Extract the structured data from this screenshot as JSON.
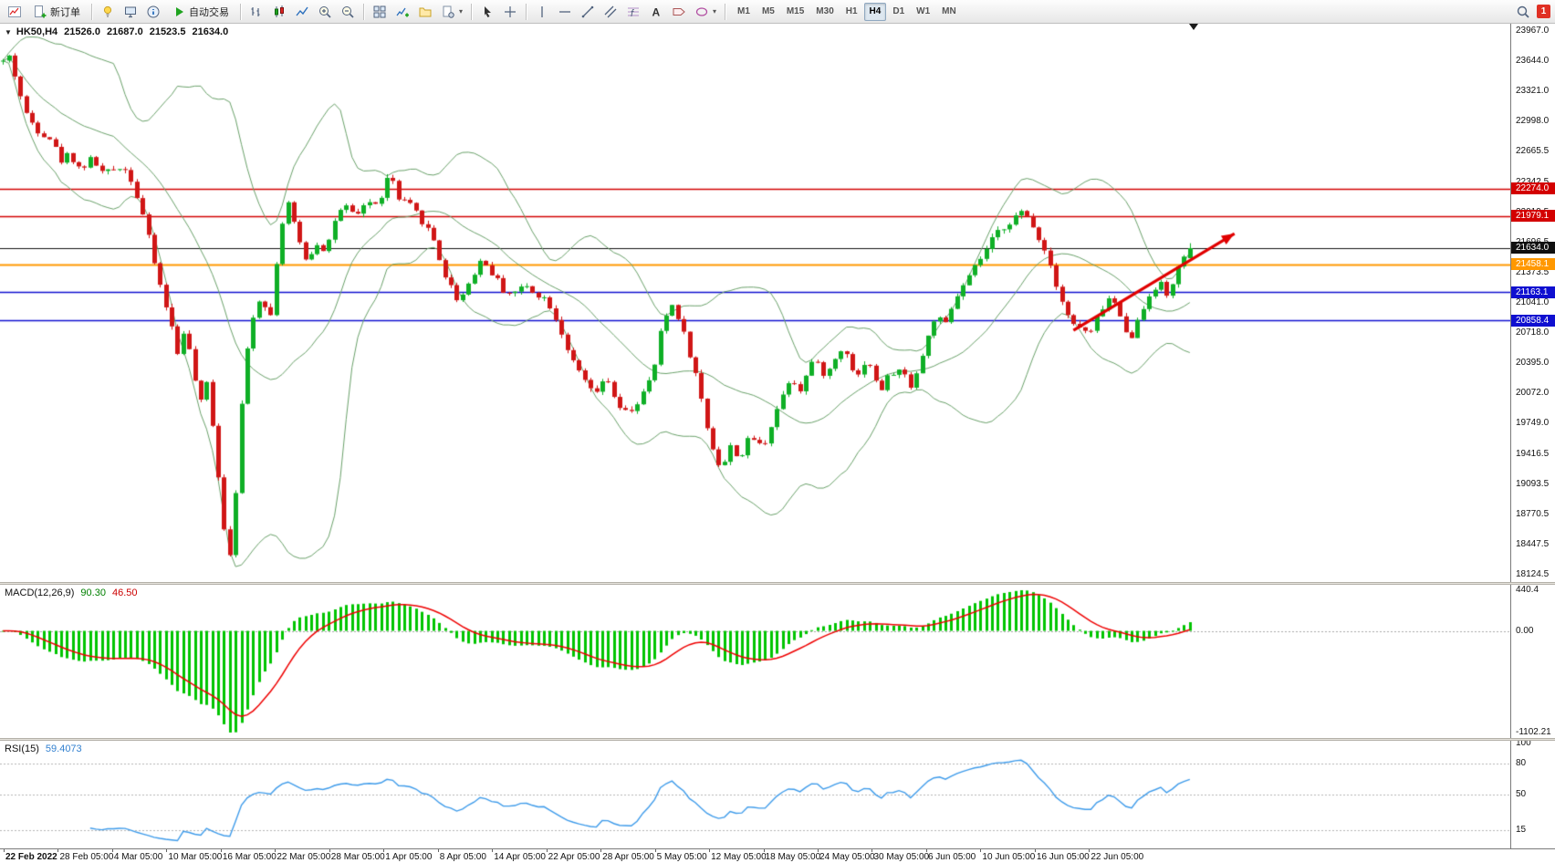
{
  "window": {
    "badge_count": "1"
  },
  "toolbar": {
    "new_order_label": "新订单",
    "autotrading_label": "自动交易",
    "timeframes": [
      "M1",
      "M5",
      "M15",
      "M30",
      "H1",
      "H4",
      "D1",
      "W1",
      "MN"
    ],
    "active_timeframe": "H4"
  },
  "chart_header": {
    "symbol": "HK50,H4",
    "open": "21526.0",
    "high": "21687.0",
    "low": "21523.5",
    "close": "21634.0"
  },
  "price_axis": {
    "ticks": [
      "23967.0",
      "23644.0",
      "23321.0",
      "22998.0",
      "22665.5",
      "22342.5",
      "22019.5",
      "21696.5",
      "21373.5",
      "21041.0",
      "20718.0",
      "20395.0",
      "20072.0",
      "19749.0",
      "19416.5",
      "19093.5",
      "18770.5",
      "18447.5",
      "18124.5"
    ]
  },
  "time_axis": {
    "labels": [
      "22 Feb 2022",
      "28 Feb 05:00",
      "4 Mar 05:00",
      "10 Mar 05:00",
      "16 Mar 05:00",
      "22 Mar 05:00",
      "28 Mar 05:00",
      "1 Apr 05:00",
      "8 Apr 05:00",
      "14 Apr 05:00",
      "22 Apr 05:00",
      "28 Apr 05:00",
      "5 May 05:00",
      "12 May 05:00",
      "18 May 05:00",
      "24 May 05:00",
      "30 May 05:00",
      "6 Jun 05:00",
      "10 Jun 05:00",
      "16 Jun 05:00",
      "22 Jun 05:00"
    ]
  },
  "indicators": {
    "macd": {
      "label": "MACD(12,26,9)",
      "value_main": "90.30",
      "value_signal": "46.50",
      "fast": 12,
      "slow": 26,
      "signal": 9,
      "axis": [
        {
          "text": "440.4",
          "value": 440.4
        },
        {
          "text": "0.00",
          "value": 0
        },
        {
          "text": "-1102.21",
          "value": -1102.21
        }
      ],
      "hist_color": "#00c400",
      "signal_color": "#ee0000"
    },
    "rsi": {
      "label": "RSI(15)",
      "value": "59.4073",
      "period": 15,
      "axis": [
        {
          "text": "100",
          "value": 100
        },
        {
          "text": "80",
          "value": 80
        },
        {
          "text": "50",
          "value": 50
        },
        {
          "text": "15",
          "value": 15
        }
      ],
      "levels": [
        80,
        50,
        15
      ],
      "line_color": "#3e9bea"
    }
  },
  "chart_data": {
    "type": "candlestick",
    "symbol": "HK50",
    "timeframe": "H4",
    "price_range": [
      18124.5,
      23967.0
    ],
    "candle_count": 205,
    "candle_area_fraction": 0.79,
    "seed": 42,
    "noise": 42,
    "wick": 40,
    "bollinger": {
      "period": 20,
      "deviation": 2,
      "color": "#69a069"
    },
    "colors": {
      "up": "#0faf26",
      "down": "#d01616",
      "background": "#ffffff"
    },
    "last_candle": {
      "open": 21526.0,
      "high": 21687.0,
      "low": 21523.5,
      "close": 21634.0
    },
    "levels": [
      {
        "label": "22274.0",
        "price": 22274.0,
        "color": "#d30000",
        "width": 1.6
      },
      {
        "label": "21979.1",
        "price": 21979.1,
        "color": "#d30000",
        "width": 1.6
      },
      {
        "label": "21634.0",
        "price": 21634.0,
        "color": "#101010",
        "width": 1.2
      },
      {
        "label": "21458.1",
        "price": 21458.1,
        "color": "#ff9800",
        "width": 2.2
      },
      {
        "label": "21163.1",
        "price": 21163.1,
        "color": "#0f0fd0",
        "width": 1.6
      },
      {
        "label": "20858.4",
        "price": 20858.4,
        "color": "#0f0fd0",
        "width": 1.6
      }
    ],
    "annotation_arrow": {
      "from_t": 0.9,
      "from_price": 20750,
      "to_t": 1.035,
      "to_price": 21790,
      "color": "#e00000"
    },
    "anchors": [
      [
        0.0,
        23640
      ],
      [
        0.006,
        23700
      ],
      [
        0.012,
        23380
      ],
      [
        0.02,
        23050
      ],
      [
        0.03,
        22900
      ],
      [
        0.042,
        22800
      ],
      [
        0.047,
        22560
      ],
      [
        0.056,
        22650
      ],
      [
        0.065,
        22480
      ],
      [
        0.075,
        22600
      ],
      [
        0.085,
        22420
      ],
      [
        0.093,
        22480
      ],
      [
        0.1,
        22530
      ],
      [
        0.108,
        22380
      ],
      [
        0.118,
        21980
      ],
      [
        0.126,
        21550
      ],
      [
        0.134,
        21150
      ],
      [
        0.14,
        20900
      ],
      [
        0.147,
        20500
      ],
      [
        0.153,
        20800
      ],
      [
        0.16,
        20300
      ],
      [
        0.167,
        19950
      ],
      [
        0.172,
        20200
      ],
      [
        0.178,
        19600
      ],
      [
        0.183,
        19000
      ],
      [
        0.188,
        18430
      ],
      [
        0.192,
        18350
      ],
      [
        0.197,
        19200
      ],
      [
        0.203,
        20300
      ],
      [
        0.21,
        20900
      ],
      [
        0.218,
        21150
      ],
      [
        0.225,
        20850
      ],
      [
        0.233,
        21800
      ],
      [
        0.24,
        22120
      ],
      [
        0.248,
        21750
      ],
      [
        0.256,
        21500
      ],
      [
        0.265,
        21700
      ],
      [
        0.272,
        21600
      ],
      [
        0.279,
        21930
      ],
      [
        0.288,
        22080
      ],
      [
        0.297,
        21950
      ],
      [
        0.306,
        22150
      ],
      [
        0.315,
        22080
      ],
      [
        0.326,
        22450
      ],
      [
        0.333,
        22150
      ],
      [
        0.342,
        22100
      ],
      [
        0.352,
        21950
      ],
      [
        0.362,
        21750
      ],
      [
        0.372,
        21350
      ],
      [
        0.384,
        21060
      ],
      [
        0.393,
        21280
      ],
      [
        0.403,
        21520
      ],
      [
        0.413,
        21350
      ],
      [
        0.422,
        21180
      ],
      [
        0.43,
        21150
      ],
      [
        0.44,
        21230
      ],
      [
        0.45,
        21150
      ],
      [
        0.46,
        21050
      ],
      [
        0.47,
        20750
      ],
      [
        0.48,
        20400
      ],
      [
        0.49,
        20200
      ],
      [
        0.5,
        20050
      ],
      [
        0.508,
        20280
      ],
      [
        0.516,
        19950
      ],
      [
        0.526,
        19850
      ],
      [
        0.536,
        20000
      ],
      [
        0.547,
        20250
      ],
      [
        0.556,
        20850
      ],
      [
        0.565,
        21050
      ],
      [
        0.575,
        20650
      ],
      [
        0.585,
        20200
      ],
      [
        0.595,
        19600
      ],
      [
        0.605,
        19250
      ],
      [
        0.613,
        19500
      ],
      [
        0.621,
        19380
      ],
      [
        0.63,
        19620
      ],
      [
        0.64,
        19480
      ],
      [
        0.65,
        19850
      ],
      [
        0.663,
        20250
      ],
      [
        0.672,
        20120
      ],
      [
        0.682,
        20430
      ],
      [
        0.694,
        20260
      ],
      [
        0.703,
        20500
      ],
      [
        0.71,
        20560
      ],
      [
        0.719,
        20220
      ],
      [
        0.728,
        20480
      ],
      [
        0.738,
        20080
      ],
      [
        0.747,
        20280
      ],
      [
        0.756,
        20320
      ],
      [
        0.766,
        20150
      ],
      [
        0.775,
        20500
      ],
      [
        0.785,
        20900
      ],
      [
        0.794,
        20800
      ],
      [
        0.802,
        21080
      ],
      [
        0.813,
        21300
      ],
      [
        0.825,
        21550
      ],
      [
        0.838,
        21800
      ],
      [
        0.85,
        21950
      ],
      [
        0.86,
        22020
      ],
      [
        0.87,
        21820
      ],
      [
        0.88,
        21550
      ],
      [
        0.89,
        21150
      ],
      [
        0.9,
        20820
      ],
      [
        0.907,
        20780
      ],
      [
        0.916,
        20700
      ],
      [
        0.925,
        20980
      ],
      [
        0.934,
        21120
      ],
      [
        0.942,
        20850
      ],
      [
        0.95,
        20680
      ],
      [
        0.958,
        20900
      ],
      [
        0.966,
        21150
      ],
      [
        0.974,
        21280
      ],
      [
        0.981,
        21100
      ],
      [
        0.988,
        21380
      ],
      [
        0.994,
        21480
      ],
      [
        1.0,
        21620
      ]
    ]
  }
}
